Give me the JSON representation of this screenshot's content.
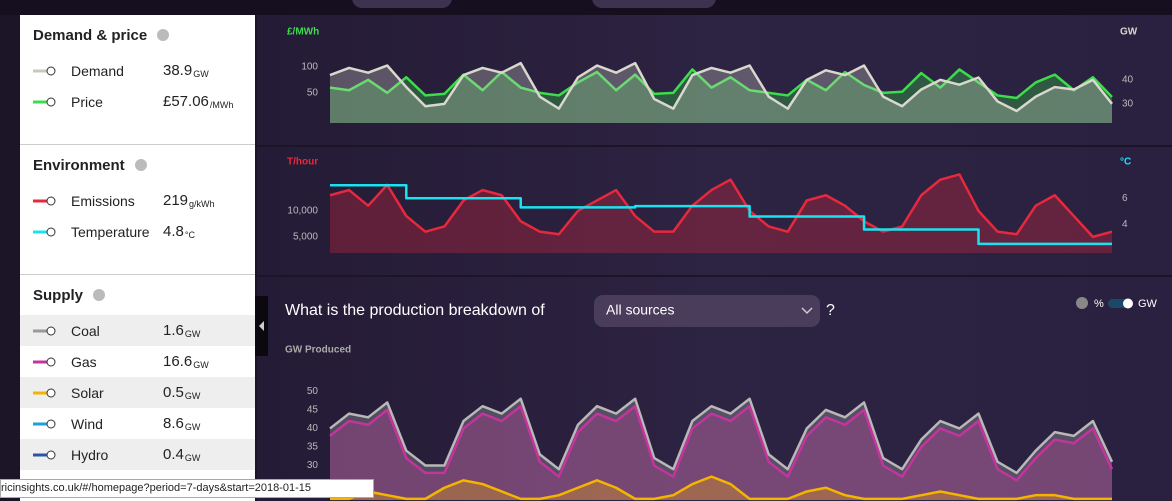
{
  "sidebar": {
    "sections": [
      {
        "title": "Demand & price",
        "items": [
          {
            "name": "Demand",
            "value": "38.9",
            "unit": "GW",
            "color": "#c9c9bb"
          },
          {
            "name": "Price",
            "value": "£57.06",
            "unit": "/MWh",
            "color": "#3ddc4a"
          }
        ]
      },
      {
        "title": "Environment",
        "items": [
          {
            "name": "Emissions",
            "value": "219",
            "unit": "g/kWh",
            "color": "#e8283c"
          },
          {
            "name": "Temperature",
            "value": "4.8",
            "unit": "°C",
            "color": "#19e3f0"
          }
        ]
      },
      {
        "title": "Supply",
        "items": [
          {
            "name": "Coal",
            "value": "1.6",
            "unit": "GW",
            "color": "#9a9a9a"
          },
          {
            "name": "Gas",
            "value": "16.6",
            "unit": "GW",
            "color": "#c4349c"
          },
          {
            "name": "Solar",
            "value": "0.5",
            "unit": "GW",
            "color": "#f4b400"
          },
          {
            "name": "Wind",
            "value": "8.6",
            "unit": "GW",
            "color": "#1aa0dc"
          },
          {
            "name": "Hydro",
            "value": "0.4",
            "unit": "GW",
            "color": "#2855a8"
          }
        ]
      }
    ]
  },
  "question": {
    "prefix": "What is the production breakdown of",
    "select": "All sources",
    "suffix": "?"
  },
  "units_toggle": {
    "percent": "%",
    "gw": "GW"
  },
  "status_url": "ricinsights.co.uk/#/homepage?period=7-days&start=2018-01-15",
  "chart_data": [
    {
      "type": "line",
      "ylabel": "£/MWh",
      "y2label": "GW",
      "area": true,
      "ylim": [
        -8,
        190
      ],
      "yticks": [
        50,
        100
      ],
      "y2lim": [
        22,
        65
      ],
      "y2ticks": [
        30,
        40
      ],
      "series": [
        {
          "color": "#3ddc4a",
          "values": [
            60,
            55,
            75,
            50,
            80,
            45,
            48,
            85,
            55,
            90,
            60,
            50,
            45,
            70,
            90,
            55,
            85,
            48,
            50,
            95,
            60,
            80,
            55,
            50,
            45,
            75,
            55,
            90,
            65,
            50,
            52,
            88,
            60,
            95,
            70,
            45,
            40,
            70,
            85,
            55,
            80,
            42
          ]
        },
        {
          "color": "#d8d8cc",
          "axis": "y2",
          "values": [
            42,
            45,
            43,
            46,
            37,
            29,
            30,
            42,
            45,
            43,
            47,
            33,
            28,
            41,
            46,
            43,
            47,
            32,
            28,
            42,
            45,
            43,
            46,
            33,
            28,
            40,
            44,
            42,
            46,
            33,
            29,
            36,
            40,
            38,
            41,
            31,
            27,
            33,
            37,
            36,
            40,
            30
          ]
        }
      ]
    },
    {
      "type": "line",
      "ylabel": "T/hour",
      "y2label": "°C",
      "area": true,
      "ylim": [
        1900,
        21700
      ],
      "yticks": [
        {
          "value": 5000,
          "label": "5,000"
        },
        {
          "value": 10000,
          "label": "10,000"
        }
      ],
      "y2lim": [
        1.8,
        9.7
      ],
      "y2ticks": [
        4,
        6
      ],
      "series": [
        {
          "color": "#e8283c",
          "values": [
            13000,
            14000,
            11000,
            15000,
            9000,
            6000,
            7000,
            12000,
            14000,
            13000,
            8000,
            6000,
            5500,
            10000,
            12000,
            14000,
            9000,
            6000,
            6000,
            11000,
            14000,
            16000,
            10000,
            7000,
            6000,
            12000,
            13000,
            11000,
            8000,
            6000,
            7000,
            13000,
            16000,
            17000,
            10000,
            6000,
            5500,
            11000,
            13000,
            9000,
            5000,
            6000
          ]
        },
        {
          "color": "#19e3f0",
          "axis": "y2",
          "step": true,
          "values": [
            7.0,
            7.0,
            7.0,
            7.0,
            6.0,
            6.0,
            6.0,
            6.0,
            6.0,
            6.0,
            5.3,
            5.3,
            5.3,
            5.3,
            5.3,
            5.3,
            5.4,
            5.4,
            5.4,
            5.4,
            5.4,
            5.4,
            4.6,
            4.6,
            4.6,
            4.6,
            4.6,
            4.6,
            3.6,
            3.6,
            3.6,
            3.6,
            3.6,
            3.6,
            2.5,
            2.5,
            2.5,
            2.5,
            2.5,
            2.5,
            2.5,
            2.5
          ]
        }
      ]
    },
    {
      "type": "line",
      "ylabel": "GW Produced",
      "area": true,
      "ylim": [
        20.7,
        59
      ],
      "yticks": [
        30,
        35,
        40,
        45,
        50
      ],
      "series": [
        {
          "color": "#b8b8b8",
          "values": [
            40,
            44,
            43,
            47,
            34,
            30,
            30,
            42,
            46,
            44,
            48,
            33,
            29,
            41,
            46,
            44,
            48,
            32,
            29,
            42,
            46,
            44,
            48,
            33,
            29,
            40,
            45,
            43,
            47,
            32,
            29,
            37,
            42,
            40,
            44,
            31,
            28,
            34,
            39,
            38,
            42,
            31
          ]
        },
        {
          "color": "#c4349c",
          "values": [
            38,
            42,
            41,
            45,
            32,
            28,
            28,
            40,
            44,
            42,
            46,
            31,
            27,
            39,
            44,
            42,
            46,
            30,
            27,
            40,
            44,
            42,
            46,
            31,
            27,
            38,
            43,
            41,
            45,
            30,
            27,
            35,
            40,
            38,
            42,
            29,
            26,
            32,
            37,
            36,
            40,
            29
          ]
        },
        {
          "color": "#f4b400",
          "values": [
            21,
            21,
            23,
            22,
            21,
            21,
            24,
            26,
            25,
            23,
            21,
            21,
            22,
            24,
            26,
            24,
            21,
            21,
            22,
            25,
            27,
            25,
            21,
            21,
            21,
            23,
            24,
            22,
            21,
            21,
            21,
            22,
            23,
            22,
            21,
            21,
            21,
            22,
            22,
            21,
            21,
            21
          ]
        }
      ]
    }
  ]
}
